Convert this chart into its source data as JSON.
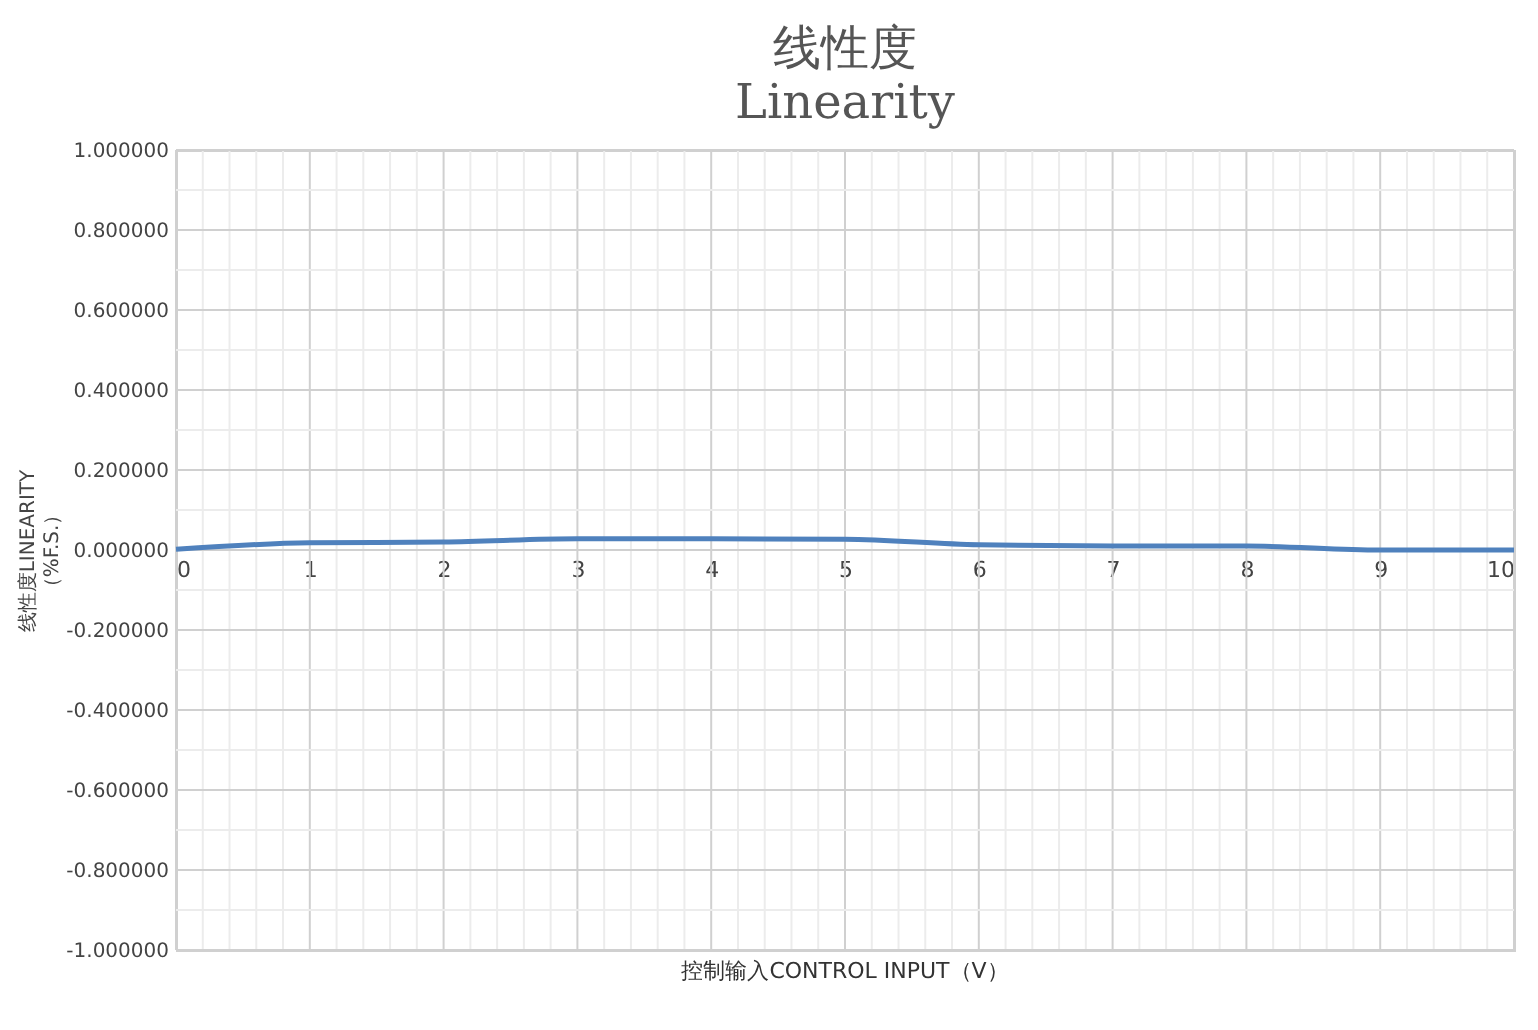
{
  "chart_data": {
    "type": "line",
    "title": "线性度",
    "subtitle": "Linearity",
    "xlabel": "控制输入CONTROL INPUT（V）",
    "ylabel": "线性度LINEARITY\n（%F.S.）",
    "x": [
      0,
      1,
      2,
      3,
      4,
      5,
      6,
      7,
      8,
      9,
      10
    ],
    "series": [
      {
        "color": "#4f81bd",
        "values": [
          0.002,
          0.018,
          0.02,
          0.028,
          0.028,
          0.027,
          0.013,
          0.01,
          0.01,
          0.0,
          0.0
        ]
      }
    ],
    "xlim": [
      0,
      10
    ],
    "xticks": [
      0,
      1,
      2,
      3,
      4,
      5,
      6,
      7,
      8,
      9,
      10
    ],
    "ylim": [
      -1,
      1
    ],
    "yticks": [
      {
        "value": -1,
        "label": "-1.000000"
      },
      {
        "value": -0.8,
        "label": "-0.800000"
      },
      {
        "value": -0.6,
        "label": "-0.600000"
      },
      {
        "value": -0.4,
        "label": "-0.400000"
      },
      {
        "value": -0.2,
        "label": "-0.200000"
      },
      {
        "value": 0,
        "label": "0.000000"
      },
      {
        "value": 0.2,
        "label": "0.200000"
      },
      {
        "value": 0.4,
        "label": "0.400000"
      },
      {
        "value": 0.6,
        "label": "0.600000"
      },
      {
        "value": 0.8,
        "label": "0.800000"
      },
      {
        "value": 1,
        "label": "1.000000"
      }
    ],
    "grid": true,
    "marker": "none",
    "line_style": "solid"
  }
}
